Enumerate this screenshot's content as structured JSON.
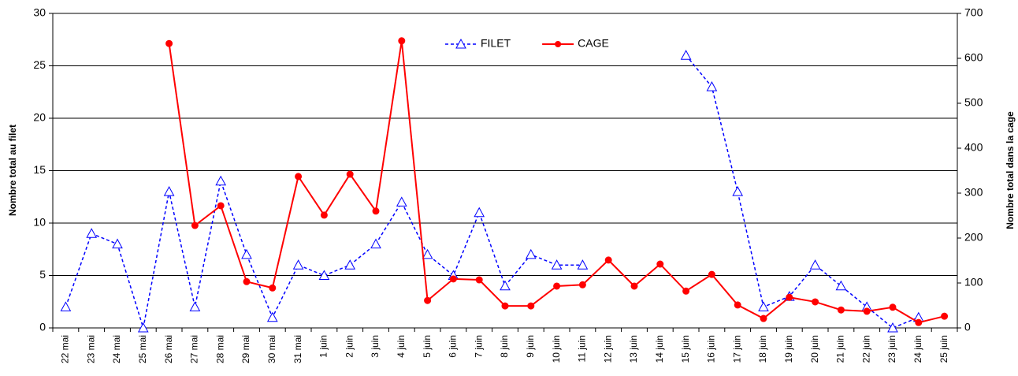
{
  "chart_data": {
    "type": "line",
    "y_label": "Nombre total au filet",
    "y2_label": "Nombre total dans la cage",
    "categories": [
      "22 mai",
      "23 mai",
      "24 mai",
      "25 mai",
      "26 mai",
      "27 mai",
      "28 mai",
      "29 mai",
      "30 mai",
      "31 mai",
      "1 juin",
      "2 juin",
      "3 juin",
      "4 juin",
      "5 juin",
      "6 juin",
      "7 juin",
      "8 juin",
      "9 juin",
      "10 juin",
      "11 juin",
      "12 juin",
      "13 juin",
      "14 juin",
      "15 juin",
      "16 juin",
      "17 juin",
      "18 juin",
      "19 juin",
      "20 juin",
      "21 juin",
      "22 juin",
      "23 juin",
      "24 juin",
      "25 juin"
    ],
    "series": [
      {
        "name": "FILET",
        "color": "#0000ff",
        "dashed": true,
        "marker": "triangle",
        "values": [
          2,
          9,
          8,
          0,
          13,
          2,
          14,
          7,
          1,
          6,
          5,
          6,
          8,
          12,
          7,
          5,
          11,
          4,
          7,
          6,
          6,
          null,
          null,
          null,
          26,
          23,
          13,
          2,
          3,
          6,
          4,
          2,
          0,
          1,
          null
        ]
      },
      {
        "name": "CAGE",
        "color": "#ff0000",
        "dashed": false,
        "marker": "circle",
        "axis": "y2",
        "values": [
          null,
          null,
          null,
          null,
          633,
          228,
          272,
          103,
          89,
          337,
          251,
          342,
          260,
          639,
          61,
          109,
          107,
          49,
          49,
          93,
          96,
          151,
          93,
          142,
          82,
          119,
          51,
          21,
          68,
          58,
          40,
          37,
          46,
          12,
          26
        ]
      }
    ],
    "ylim": [
      0,
      30
    ],
    "yticks": [
      0,
      5,
      10,
      15,
      20,
      25,
      30
    ],
    "y2lim": [
      0,
      700
    ],
    "y2ticks": [
      0,
      100,
      200,
      300,
      400,
      500,
      600,
      700
    ],
    "grid": true,
    "legend": "top"
  }
}
